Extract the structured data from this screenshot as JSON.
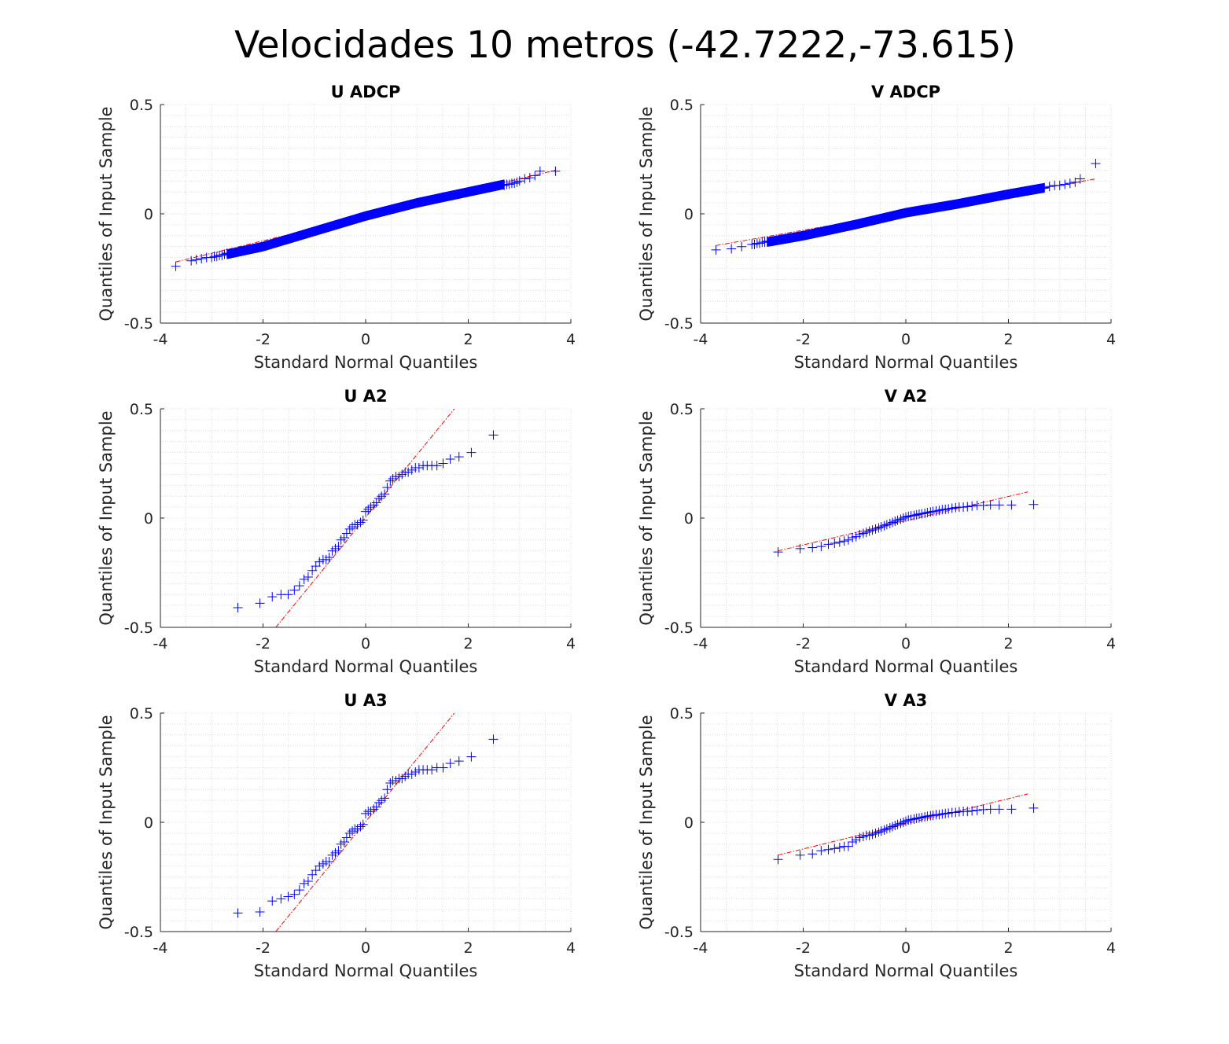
{
  "figure": {
    "title": "Velocidades 10 metros   (-42.7222,-73.615)"
  },
  "colors": {
    "points": "#0000ff",
    "reference_line": "#ff0000",
    "axis": "#262626",
    "grid": "#d6d6d6"
  },
  "chart_data": [
    {
      "type": "scatter",
      "subtype": "qqplot",
      "title": "U ADCP",
      "xlabel": "Standard Normal Quantiles",
      "ylabel": "Quantiles of Input Sample",
      "xlim": [
        -4,
        4
      ],
      "ylim": [
        -0.5,
        0.5
      ],
      "xticks": [
        -4,
        -2,
        0,
        2,
        4
      ],
      "yticks": [
        -0.5,
        0,
        0.5
      ],
      "grid": true,
      "minor_grid": true,
      "reference_line": {
        "x": [
          -3.7,
          3.7
        ],
        "y": [
          -0.22,
          0.2
        ]
      },
      "quantile_curve": {
        "x": [
          -3.7,
          -3.0,
          -2.6,
          -2.0,
          -1.0,
          0,
          1.0,
          2.0,
          2.6,
          3.0,
          3.7
        ],
        "y": [
          -0.24,
          -0.2,
          -0.18,
          -0.15,
          -0.08,
          -0.01,
          0.05,
          0.1,
          0.13,
          0.15,
          0.19
        ]
      },
      "tail_points": {
        "x": [
          -3.7,
          -3.4,
          -3.3,
          -3.2,
          -3.1,
          -3.0,
          -2.95,
          -2.9,
          -2.85,
          -2.8,
          -2.75,
          -2.7,
          2.7,
          2.75,
          2.8,
          2.85,
          2.9,
          2.95,
          3.0,
          3.1,
          3.2,
          3.3,
          3.4,
          3.7
        ],
        "y": [
          -0.24,
          -0.215,
          -0.21,
          -0.205,
          -0.2,
          -0.2,
          -0.195,
          -0.195,
          -0.19,
          -0.19,
          -0.185,
          -0.18,
          0.13,
          0.135,
          0.135,
          0.14,
          0.14,
          0.145,
          0.15,
          0.16,
          0.165,
          0.175,
          0.195,
          0.195
        ]
      },
      "n_points": 1200
    },
    {
      "type": "scatter",
      "subtype": "qqplot",
      "title": "V ADCP",
      "xlabel": "Standard Normal Quantiles",
      "ylabel": "Quantiles of Input Sample",
      "xlim": [
        -4,
        4
      ],
      "ylim": [
        -0.5,
        0.5
      ],
      "xticks": [
        -4,
        -2,
        0,
        2,
        4
      ],
      "yticks": [
        -0.5,
        0,
        0.5
      ],
      "grid": true,
      "minor_grid": true,
      "reference_line": {
        "x": [
          -3.7,
          3.7
        ],
        "y": [
          -0.145,
          0.16
        ]
      },
      "quantile_curve": {
        "x": [
          -3.7,
          -3.0,
          -2.6,
          -2.0,
          -1.0,
          0,
          1.0,
          2.0,
          2.6,
          3.0,
          3.7
        ],
        "y": [
          -0.165,
          -0.14,
          -0.125,
          -0.1,
          -0.05,
          0.005,
          0.045,
          0.09,
          0.115,
          0.13,
          0.23
        ]
      },
      "tail_points": {
        "x": [
          -3.7,
          -3.4,
          -3.2,
          -3.0,
          -2.95,
          -2.9,
          -2.85,
          -2.8,
          -2.75,
          -2.7,
          2.7,
          2.8,
          2.9,
          3.0,
          3.1,
          3.2,
          3.3,
          3.4,
          3.7
        ],
        "y": [
          -0.165,
          -0.16,
          -0.15,
          -0.14,
          -0.14,
          -0.135,
          -0.135,
          -0.13,
          -0.13,
          -0.125,
          0.12,
          0.125,
          0.13,
          0.13,
          0.135,
          0.14,
          0.145,
          0.16,
          0.23
        ]
      },
      "n_points": 1200
    },
    {
      "type": "scatter",
      "subtype": "qqplot",
      "title": "U A2",
      "xlabel": "Standard Normal Quantiles",
      "ylabel": "Quantiles of Input Sample",
      "xlim": [
        -4,
        4
      ],
      "ylim": [
        -0.5,
        0.5
      ],
      "xticks": [
        -4,
        -2,
        0,
        2,
        4
      ],
      "yticks": [
        -0.5,
        0,
        0.5
      ],
      "grid": true,
      "minor_grid": true,
      "reference_line": {
        "x": [
          -1.75,
          1.73
        ],
        "y": [
          -0.5,
          0.5
        ]
      },
      "points": {
        "x": [
          -2.49,
          -2.06,
          -1.82,
          -1.65,
          -1.51,
          -1.39,
          -1.29,
          -1.2,
          -1.12,
          -1.04,
          -0.97,
          -0.9,
          -0.83,
          -0.77,
          -0.71,
          -0.65,
          -0.59,
          -0.53,
          -0.48,
          -0.42,
          -0.37,
          -0.31,
          -0.26,
          -0.21,
          -0.16,
          -0.1,
          -0.05,
          0.0,
          0.05,
          0.1,
          0.16,
          0.21,
          0.26,
          0.31,
          0.37,
          0.42,
          0.48,
          0.53,
          0.59,
          0.65,
          0.71,
          0.77,
          0.83,
          0.9,
          0.97,
          1.04,
          1.12,
          1.2,
          1.29,
          1.39,
          1.51,
          1.65,
          1.82,
          2.06,
          2.49
        ],
        "y": [
          -0.41,
          -0.39,
          -0.36,
          -0.35,
          -0.35,
          -0.33,
          -0.31,
          -0.28,
          -0.27,
          -0.24,
          -0.22,
          -0.2,
          -0.19,
          -0.19,
          -0.18,
          -0.15,
          -0.14,
          -0.13,
          -0.1,
          -0.09,
          -0.07,
          -0.05,
          -0.04,
          -0.03,
          -0.03,
          -0.02,
          -0.01,
          0.03,
          0.04,
          0.05,
          0.06,
          0.07,
          0.09,
          0.1,
          0.11,
          0.14,
          0.17,
          0.18,
          0.19,
          0.19,
          0.2,
          0.21,
          0.21,
          0.22,
          0.23,
          0.23,
          0.24,
          0.24,
          0.24,
          0.24,
          0.25,
          0.27,
          0.28,
          0.3,
          0.38
        ]
      }
    },
    {
      "type": "scatter",
      "subtype": "qqplot",
      "title": "V A2",
      "xlabel": "Standard Normal Quantiles",
      "ylabel": "Quantiles of Input Sample",
      "xlim": [
        -4,
        4
      ],
      "ylim": [
        -0.5,
        0.5
      ],
      "xticks": [
        -4,
        -2,
        0,
        2,
        4
      ],
      "yticks": [
        -0.5,
        0,
        0.5
      ],
      "grid": true,
      "minor_grid": true,
      "reference_line": {
        "x": [
          -2.49,
          2.38
        ],
        "y": [
          -0.15,
          0.12
        ]
      },
      "points": {
        "x": [
          -2.49,
          -2.06,
          -1.82,
          -1.65,
          -1.51,
          -1.39,
          -1.29,
          -1.2,
          -1.12,
          -1.04,
          -0.97,
          -0.9,
          -0.83,
          -0.77,
          -0.71,
          -0.65,
          -0.59,
          -0.53,
          -0.48,
          -0.42,
          -0.37,
          -0.31,
          -0.26,
          -0.21,
          -0.16,
          -0.1,
          -0.05,
          0.0,
          0.05,
          0.1,
          0.16,
          0.21,
          0.26,
          0.31,
          0.37,
          0.42,
          0.48,
          0.53,
          0.59,
          0.65,
          0.71,
          0.77,
          0.83,
          0.9,
          0.97,
          1.04,
          1.12,
          1.2,
          1.29,
          1.39,
          1.51,
          1.65,
          1.82,
          2.06,
          2.49
        ],
        "y": [
          -0.155,
          -0.14,
          -0.135,
          -0.13,
          -0.12,
          -0.115,
          -0.11,
          -0.105,
          -0.1,
          -0.09,
          -0.085,
          -0.075,
          -0.07,
          -0.065,
          -0.06,
          -0.055,
          -0.05,
          -0.045,
          -0.04,
          -0.035,
          -0.03,
          -0.025,
          -0.02,
          -0.015,
          -0.01,
          -0.005,
          0.0,
          0.005,
          0.008,
          0.01,
          0.012,
          0.015,
          0.018,
          0.02,
          0.022,
          0.025,
          0.028,
          0.03,
          0.032,
          0.035,
          0.038,
          0.04,
          0.042,
          0.045,
          0.048,
          0.05,
          0.05,
          0.052,
          0.055,
          0.058,
          0.058,
          0.06,
          0.06,
          0.06,
          0.062
        ]
      }
    },
    {
      "type": "scatter",
      "subtype": "qqplot",
      "title": "U A3",
      "xlabel": "Standard Normal Quantiles",
      "ylabel": "Quantiles of Input Sample",
      "xlim": [
        -4,
        4
      ],
      "ylim": [
        -0.5,
        0.5
      ],
      "xticks": [
        -4,
        -2,
        0,
        2,
        4
      ],
      "yticks": [
        -0.5,
        0,
        0.5
      ],
      "grid": true,
      "minor_grid": true,
      "reference_line": {
        "x": [
          -1.75,
          1.73
        ],
        "y": [
          -0.5,
          0.5
        ]
      },
      "points": {
        "x": [
          -2.49,
          -2.06,
          -1.82,
          -1.65,
          -1.51,
          -1.39,
          -1.29,
          -1.2,
          -1.12,
          -1.04,
          -0.97,
          -0.9,
          -0.83,
          -0.77,
          -0.71,
          -0.65,
          -0.59,
          -0.53,
          -0.48,
          -0.42,
          -0.37,
          -0.31,
          -0.26,
          -0.21,
          -0.16,
          -0.1,
          -0.05,
          0.0,
          0.05,
          0.1,
          0.16,
          0.21,
          0.26,
          0.31,
          0.37,
          0.42,
          0.48,
          0.53,
          0.59,
          0.65,
          0.71,
          0.77,
          0.83,
          0.9,
          0.97,
          1.04,
          1.12,
          1.2,
          1.29,
          1.39,
          1.51,
          1.65,
          1.82,
          2.06,
          2.49
        ],
        "y": [
          -0.415,
          -0.41,
          -0.36,
          -0.35,
          -0.34,
          -0.33,
          -0.31,
          -0.28,
          -0.27,
          -0.24,
          -0.22,
          -0.2,
          -0.19,
          -0.18,
          -0.18,
          -0.15,
          -0.14,
          -0.13,
          -0.1,
          -0.09,
          -0.07,
          -0.05,
          -0.04,
          -0.03,
          -0.03,
          -0.02,
          -0.01,
          0.04,
          0.05,
          0.05,
          0.06,
          0.07,
          0.09,
          0.1,
          0.11,
          0.15,
          0.18,
          0.19,
          0.19,
          0.2,
          0.2,
          0.21,
          0.22,
          0.22,
          0.23,
          0.24,
          0.24,
          0.24,
          0.24,
          0.25,
          0.25,
          0.27,
          0.28,
          0.3,
          0.38
        ]
      }
    },
    {
      "type": "scatter",
      "subtype": "qqplot",
      "title": "V A3",
      "xlabel": "Standard Normal Quantiles",
      "ylabel": "Quantiles of Input Sample",
      "xlim": [
        -4,
        4
      ],
      "ylim": [
        -0.5,
        0.5
      ],
      "xticks": [
        -4,
        -2,
        0,
        2,
        4
      ],
      "yticks": [
        -0.5,
        0,
        0.5
      ],
      "grid": true,
      "minor_grid": true,
      "reference_line": {
        "x": [
          -2.49,
          2.38
        ],
        "y": [
          -0.15,
          0.13
        ]
      },
      "points": {
        "x": [
          -2.49,
          -2.06,
          -1.82,
          -1.65,
          -1.51,
          -1.39,
          -1.29,
          -1.2,
          -1.12,
          -1.04,
          -0.97,
          -0.9,
          -0.83,
          -0.77,
          -0.71,
          -0.65,
          -0.59,
          -0.53,
          -0.48,
          -0.42,
          -0.37,
          -0.31,
          -0.26,
          -0.21,
          -0.16,
          -0.1,
          -0.05,
          0.0,
          0.05,
          0.1,
          0.16,
          0.21,
          0.26,
          0.31,
          0.37,
          0.42,
          0.48,
          0.53,
          0.59,
          0.65,
          0.71,
          0.77,
          0.83,
          0.9,
          0.97,
          1.04,
          1.12,
          1.2,
          1.29,
          1.39,
          1.51,
          1.65,
          1.82,
          2.06,
          2.49
        ],
        "y": [
          -0.17,
          -0.15,
          -0.145,
          -0.13,
          -0.125,
          -0.12,
          -0.115,
          -0.11,
          -0.11,
          -0.09,
          -0.08,
          -0.07,
          -0.065,
          -0.06,
          -0.06,
          -0.055,
          -0.05,
          -0.045,
          -0.04,
          -0.035,
          -0.03,
          -0.025,
          -0.02,
          -0.015,
          -0.01,
          -0.005,
          0.0,
          0.005,
          0.01,
          0.012,
          0.015,
          0.018,
          0.02,
          0.022,
          0.025,
          0.028,
          0.03,
          0.032,
          0.035,
          0.035,
          0.038,
          0.04,
          0.042,
          0.045,
          0.045,
          0.048,
          0.05,
          0.05,
          0.052,
          0.055,
          0.058,
          0.06,
          0.06,
          0.06,
          0.065
        ]
      }
    }
  ]
}
